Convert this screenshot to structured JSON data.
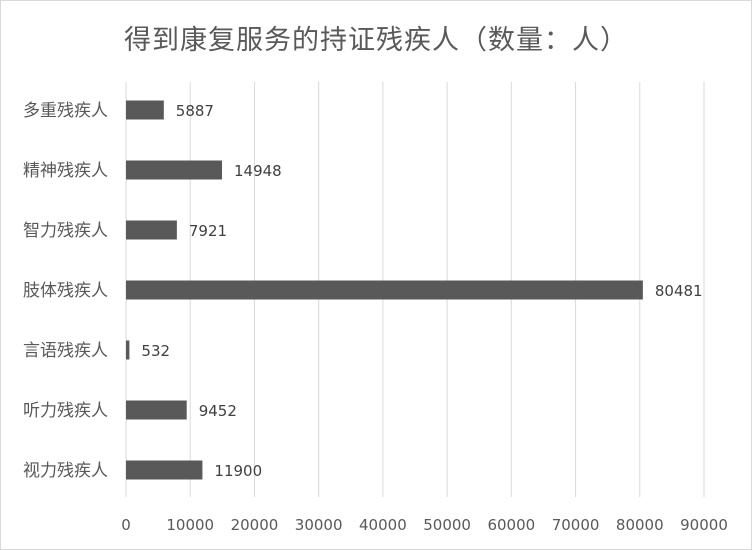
{
  "chart_data": {
    "type": "bar",
    "orientation": "horizontal",
    "title": "得到康复服务的持证残疾人（数量：人）",
    "categories": [
      "多重残疾人",
      "精神残疾人",
      "智力残疾人",
      "肢体残疾人",
      "言语残疾人",
      "听力残疾人",
      "视力残疾人"
    ],
    "values": [
      5887,
      14948,
      7921,
      80481,
      532,
      9452,
      11900
    ],
    "xlim": [
      0,
      90000
    ],
    "xticks": [
      0,
      10000,
      20000,
      30000,
      40000,
      50000,
      60000,
      70000,
      80000,
      90000
    ],
    "grid": true,
    "bar_color": "#595959"
  }
}
